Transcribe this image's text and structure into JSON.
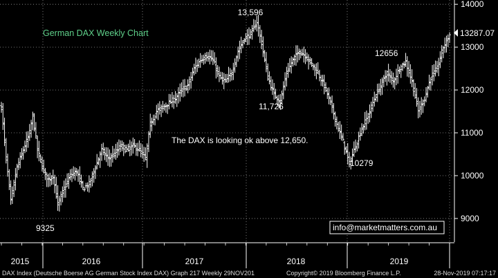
{
  "chart_data": {
    "type": "ohlc",
    "title": "German DAX Weekly Chart",
    "note": "The DAX is looking ok above 12,650.",
    "email": "info@marketmatters.com.au",
    "last_price_label": "13287.07",
    "y_ticks": [
      9000,
      10000,
      11000,
      12000,
      13000,
      14000
    ],
    "ylim": [
      8450,
      14100
    ],
    "x_year_labels": [
      "2015",
      "2016",
      "2017",
      "2018",
      "2019"
    ],
    "annotations": [
      {
        "text": "13,596",
        "value": 13596
      },
      {
        "text": "11,726",
        "value": 11726
      },
      {
        "text": "12656",
        "value": 12656
      },
      {
        "text": "10279",
        "value": 10279
      },
      {
        "text": "9325",
        "value": 9325
      }
    ],
    "anchors": [
      [
        0,
        11600
      ],
      [
        3,
        10400
      ],
      [
        6,
        9400
      ],
      [
        10,
        10200
      ],
      [
        14,
        10600
      ],
      [
        18,
        11000
      ],
      [
        20,
        11400
      ],
      [
        23,
        10600
      ],
      [
        27,
        10100
      ],
      [
        30,
        9900
      ],
      [
        33,
        10000
      ],
      [
        36,
        9325
      ],
      [
        40,
        9700
      ],
      [
        44,
        10000
      ],
      [
        48,
        10100
      ],
      [
        52,
        9700
      ],
      [
        56,
        9800
      ],
      [
        60,
        10200
      ],
      [
        64,
        10600
      ],
      [
        68,
        10400
      ],
      [
        72,
        10500
      ],
      [
        76,
        10700
      ],
      [
        80,
        10600
      ],
      [
        84,
        10700
      ],
      [
        88,
        10600
      ],
      [
        92,
        10400
      ],
      [
        95,
        11200
      ],
      [
        99,
        11500
      ],
      [
        103,
        11600
      ],
      [
        107,
        11700
      ],
      [
        111,
        11800
      ],
      [
        115,
        12000
      ],
      [
        119,
        12100
      ],
      [
        123,
        12500
      ],
      [
        127,
        12700
      ],
      [
        131,
        12800
      ],
      [
        135,
        12700
      ],
      [
        139,
        12300
      ],
      [
        143,
        12200
      ],
      [
        147,
        12400
      ],
      [
        151,
        12900
      ],
      [
        155,
        13200
      ],
      [
        159,
        13300
      ],
      [
        163,
        13596
      ],
      [
        166,
        13100
      ],
      [
        170,
        12300
      ],
      [
        174,
        11900
      ],
      [
        178,
        11726
      ],
      [
        182,
        12400
      ],
      [
        186,
        12700
      ],
      [
        190,
        12900
      ],
      [
        194,
        12800
      ],
      [
        198,
        12600
      ],
      [
        202,
        12400
      ],
      [
        206,
        12100
      ],
      [
        210,
        11700
      ],
      [
        214,
        11200
      ],
      [
        218,
        10800
      ],
      [
        222,
        10279
      ],
      [
        226,
        10700
      ],
      [
        230,
        11100
      ],
      [
        234,
        11400
      ],
      [
        238,
        11800
      ],
      [
        242,
        12100
      ],
      [
        246,
        12400
      ],
      [
        250,
        12200
      ],
      [
        254,
        12500
      ],
      [
        258,
        12656
      ],
      [
        262,
        12200
      ],
      [
        266,
        11500
      ],
      [
        270,
        11800
      ],
      [
        274,
        12300
      ],
      [
        278,
        12500
      ],
      [
        282,
        13000
      ],
      [
        286,
        13287
      ]
    ]
  },
  "footer": {
    "left": "DAX Index (Deutsche Boerse AG German Stock Index DAX) Graph 217  Weekly 29NOV201",
    "middle": "Copyright© 2019 Bloomberg Finance L.P.",
    "right": "28-Nov-2019 07:17:17"
  }
}
